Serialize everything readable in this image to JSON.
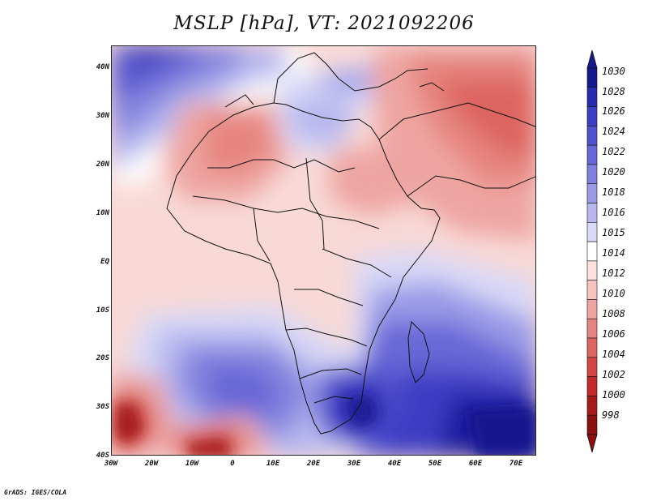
{
  "title": "MSLP [hPa], VT: 2021092206",
  "credit": "GrADS: IGES/COLA",
  "axes": {
    "lat_labels": [
      "40N",
      "30N",
      "20N",
      "10N",
      "EQ",
      "10S",
      "20S",
      "30S",
      "40S"
    ],
    "lon_labels": [
      "30W",
      "20W",
      "10W",
      "0",
      "10E",
      "20E",
      "30E",
      "40E",
      "50E",
      "60E",
      "70E"
    ],
    "lat_range": [
      -40,
      44
    ],
    "lon_range": [
      -30,
      75
    ]
  },
  "colorbar": {
    "levels": [
      "1030",
      "1028",
      "1026",
      "1024",
      "1022",
      "1020",
      "1018",
      "1016",
      "1015",
      "1014",
      "1012",
      "1010",
      "1008",
      "1006",
      "1004",
      "1002",
      "1000",
      "998"
    ],
    "colors": [
      "#17178f",
      "#2a2ab0",
      "#3c3cc4",
      "#5050cf",
      "#6767d7",
      "#7f7fde",
      "#9a9ae7",
      "#b8b8ef",
      "#d8d8f7",
      "#ffffff",
      "#fbe0de",
      "#f6c3c0",
      "#eea5a1",
      "#e68580",
      "#dd6560",
      "#d24743",
      "#c12a27",
      "#a51b1b",
      "#8b1010"
    ]
  }
}
